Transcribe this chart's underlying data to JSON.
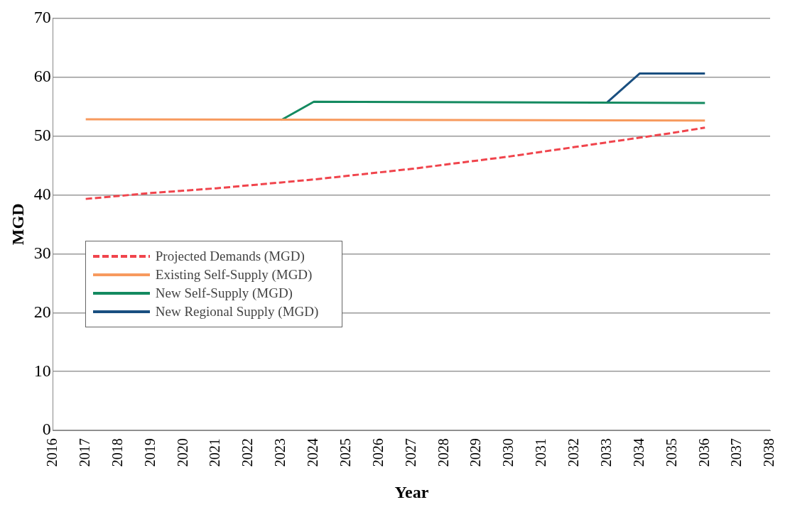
{
  "chart_data": {
    "type": "line",
    "xlabel": "Year",
    "ylabel": "MGD",
    "xlim": [
      2016,
      2038
    ],
    "xticks": [
      2016,
      2017,
      2018,
      2019,
      2020,
      2021,
      2022,
      2023,
      2024,
      2025,
      2026,
      2027,
      2028,
      2029,
      2030,
      2031,
      2032,
      2033,
      2034,
      2035,
      2036,
      2037,
      2038
    ],
    "ylim": [
      0,
      70
    ],
    "yticks": [
      0,
      10,
      20,
      30,
      40,
      50,
      60,
      70
    ],
    "grid": "y",
    "legend": "bottom left",
    "marker": "none",
    "series": [
      {
        "name": "Projected Demands (MGD)",
        "color": "#f0444c",
        "line_style": "dashed",
        "x": [
          2017,
          2018,
          2019,
          2020,
          2021,
          2022,
          2023,
          2024,
          2025,
          2026,
          2027,
          2028,
          2029,
          2030,
          2031,
          2032,
          2033,
          2034,
          2035,
          2036
        ],
        "values": [
          39.3,
          39.8,
          40.3,
          40.7,
          41.1,
          41.6,
          42.1,
          42.6,
          43.2,
          43.8,
          44.4,
          45.1,
          45.8,
          46.5,
          47.3,
          48.1,
          48.9,
          49.7,
          50.5,
          51.4
        ]
      },
      {
        "name": "Existing Self-Supply (MGD)",
        "color": "#f79a5e",
        "line_style": "solid",
        "x": [
          2017,
          2036
        ],
        "values": [
          52.8,
          52.6
        ]
      },
      {
        "name": "New Self-Supply (MGD)",
        "color": "#148a60",
        "line_style": "solid",
        "x": [
          2023,
          2024,
          2036
        ],
        "values": [
          52.7,
          55.8,
          55.6
        ]
      },
      {
        "name": "New Regional Supply (MGD)",
        "color": "#1a4f80",
        "line_style": "solid",
        "x": [
          2033,
          2034,
          2036
        ],
        "values": [
          55.7,
          60.6,
          60.6
        ]
      }
    ]
  }
}
